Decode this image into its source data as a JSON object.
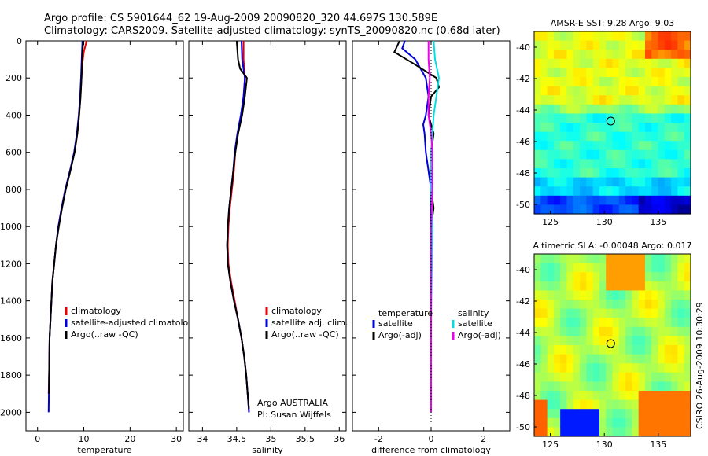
{
  "title_line1": "Argo profile: CS 5901644_62 19-Aug-2009 20090820_320 44.697S 130.589E",
  "title_line2": "Climatology: CARS2009. Satellite-adjusted climatology: synTS_20090820.nc (0.68d later)",
  "credit": "CSIRO 26-Aug-2009 10:30:29",
  "chart_data": [
    {
      "type": "line",
      "id": "temperature-profile",
      "xlabel": "temperature",
      "xlim": [
        -2.5,
        31.5
      ],
      "xticks": [
        0,
        10,
        20,
        30
      ],
      "ylim": [
        0,
        2100
      ],
      "yticks": [
        0,
        200,
        400,
        600,
        800,
        1000,
        1200,
        1400,
        1600,
        1800,
        2000
      ],
      "y_reversed": true,
      "legend": [
        "climatology",
        "satellite-adjusted climatology",
        "Argo(..raw -QC)"
      ],
      "series": [
        {
          "name": "climatology",
          "color": "#ee0000",
          "points": [
            [
              10.6,
              0
            ],
            [
              10.4,
              20
            ],
            [
              10.0,
              60
            ],
            [
              9.7,
              120
            ],
            [
              9.5,
              200
            ],
            [
              9.3,
              300
            ],
            [
              9.0,
              400
            ],
            [
              8.6,
              500
            ],
            [
              8.0,
              600
            ],
            [
              7.0,
              700
            ],
            [
              6.0,
              800
            ],
            [
              5.2,
              900
            ],
            [
              4.5,
              1000
            ],
            [
              4.0,
              1100
            ],
            [
              3.6,
              1200
            ],
            [
              3.2,
              1300
            ],
            [
              3.0,
              1400
            ],
            [
              2.8,
              1500
            ],
            [
              2.6,
              1600
            ],
            [
              2.5,
              1800
            ],
            [
              2.4,
              1900
            ]
          ]
        },
        {
          "name": "satellite-adjusted climatology",
          "color": "#0000dd",
          "points": [
            [
              9.7,
              0
            ],
            [
              9.6,
              60
            ],
            [
              9.4,
              200
            ],
            [
              9.2,
              300
            ],
            [
              8.9,
              400
            ],
            [
              8.5,
              500
            ],
            [
              7.9,
              600
            ],
            [
              7.0,
              700
            ],
            [
              6.0,
              800
            ],
            [
              5.2,
              900
            ],
            [
              4.5,
              1000
            ],
            [
              4.0,
              1100
            ],
            [
              3.6,
              1200
            ],
            [
              3.2,
              1300
            ],
            [
              3.0,
              1400
            ],
            [
              2.8,
              1500
            ],
            [
              2.6,
              1600
            ],
            [
              2.5,
              1800
            ],
            [
              2.4,
              2000
            ]
          ]
        },
        {
          "name": "Argo(..raw -QC)",
          "color": "#000000",
          "points": [
            [
              9.9,
              0
            ],
            [
              9.7,
              60
            ],
            [
              9.5,
              200
            ],
            [
              9.3,
              300
            ],
            [
              9.0,
              400
            ],
            [
              8.6,
              500
            ],
            [
              8.0,
              600
            ],
            [
              7.1,
              700
            ],
            [
              6.1,
              800
            ],
            [
              5.3,
              900
            ],
            [
              4.6,
              1000
            ],
            [
              4.0,
              1100
            ],
            [
              3.6,
              1200
            ],
            [
              3.2,
              1300
            ],
            [
              3.0,
              1400
            ],
            [
              2.8,
              1500
            ],
            [
              2.6,
              1600
            ],
            [
              2.5,
              1800
            ],
            [
              2.5,
              1900
            ]
          ]
        }
      ]
    },
    {
      "type": "line",
      "id": "salinity-profile",
      "xlabel": "salinity",
      "xlim": [
        33.8,
        36.1
      ],
      "xticks": [
        34,
        34.5,
        35,
        35.5,
        36
      ],
      "ylim": [
        0,
        2100
      ],
      "y_reversed": true,
      "legend": [
        "climatology",
        "satellite adj. clim.",
        "Argo(..raw -QC)"
      ],
      "annotation": [
        "Argo AUSTRALIA",
        "PI: Susan Wijffels"
      ],
      "series": [
        {
          "name": "climatology",
          "color": "#ee0000",
          "points": [
            [
              34.6,
              0
            ],
            [
              34.6,
              100
            ],
            [
              34.62,
              200
            ],
            [
              34.6,
              300
            ],
            [
              34.57,
              400
            ],
            [
              34.52,
              500
            ],
            [
              34.48,
              600
            ],
            [
              34.46,
              700
            ],
            [
              34.43,
              800
            ],
            [
              34.4,
              900
            ],
            [
              34.38,
              1000
            ],
            [
              34.37,
              1100
            ],
            [
              34.38,
              1200
            ],
            [
              34.42,
              1300
            ],
            [
              34.47,
              1400
            ],
            [
              34.52,
              1500
            ],
            [
              34.57,
              1600
            ],
            [
              34.61,
              1700
            ],
            [
              34.64,
              1800
            ],
            [
              34.66,
              1900
            ],
            [
              34.68,
              2000
            ]
          ]
        },
        {
          "name": "satellite adj. clim.",
          "color": "#0000dd",
          "points": [
            [
              34.57,
              0
            ],
            [
              34.58,
              100
            ],
            [
              34.62,
              200
            ],
            [
              34.6,
              300
            ],
            [
              34.56,
              400
            ],
            [
              34.51,
              500
            ],
            [
              34.47,
              600
            ],
            [
              34.45,
              700
            ],
            [
              34.42,
              800
            ],
            [
              34.39,
              900
            ],
            [
              34.37,
              1000
            ],
            [
              34.36,
              1100
            ],
            [
              34.37,
              1200
            ],
            [
              34.41,
              1300
            ],
            [
              34.46,
              1400
            ],
            [
              34.52,
              1500
            ],
            [
              34.57,
              1600
            ],
            [
              34.61,
              1700
            ],
            [
              34.64,
              1800
            ],
            [
              34.66,
              1900
            ],
            [
              34.68,
              2000
            ]
          ]
        },
        {
          "name": "Argo(..raw -QC)",
          "color": "#000000",
          "points": [
            [
              34.5,
              0
            ],
            [
              34.52,
              100
            ],
            [
              34.55,
              150
            ],
            [
              34.65,
              200
            ],
            [
              34.62,
              300
            ],
            [
              34.58,
              400
            ],
            [
              34.52,
              500
            ],
            [
              34.48,
              600
            ],
            [
              34.45,
              700
            ],
            [
              34.42,
              800
            ],
            [
              34.39,
              900
            ],
            [
              34.37,
              1000
            ],
            [
              34.36,
              1100
            ],
            [
              34.37,
              1200
            ],
            [
              34.41,
              1300
            ],
            [
              34.46,
              1400
            ],
            [
              34.52,
              1500
            ],
            [
              34.57,
              1600
            ],
            [
              34.61,
              1700
            ],
            [
              34.64,
              1800
            ],
            [
              34.66,
              1900
            ],
            [
              34.68,
              1980
            ]
          ]
        }
      ]
    },
    {
      "type": "line",
      "id": "difference-from-climatology",
      "xlabel": "difference from climatology",
      "xlim": [
        -3.0,
        3.0
      ],
      "xticks": [
        -2,
        0,
        2
      ],
      "ylim": [
        0,
        2100
      ],
      "y_reversed": true,
      "legend_temperature": {
        "title": "temperature",
        "items": [
          "satellite",
          "Argo(-adj)"
        ]
      },
      "legend_salinity": {
        "title": "salinity",
        "items": [
          "satellite",
          "Argo(-adj)"
        ]
      },
      "series": [
        {
          "name": "temperature satellite",
          "color": "#0000dd",
          "points": [
            [
              -1.0,
              0
            ],
            [
              -1.1,
              40
            ],
            [
              -0.6,
              100
            ],
            [
              -0.2,
              200
            ],
            [
              -0.1,
              300
            ],
            [
              -0.2,
              400
            ],
            [
              -0.3,
              450
            ],
            [
              -0.25,
              500
            ],
            [
              -0.2,
              600
            ],
            [
              -0.1,
              700
            ],
            [
              0.0,
              800
            ],
            [
              0.0,
              1000
            ],
            [
              0.0,
              1500
            ],
            [
              0.0,
              2000
            ]
          ]
        },
        {
          "name": "temperature Argo(-adj)",
          "color": "#000000",
          "points": [
            [
              -1.2,
              0
            ],
            [
              -1.4,
              60
            ],
            [
              -0.7,
              120
            ],
            [
              0.2,
              200
            ],
            [
              0.3,
              250
            ],
            [
              0.0,
              300
            ],
            [
              -0.1,
              400
            ],
            [
              0.1,
              500
            ],
            [
              0.0,
              600
            ],
            [
              0.0,
              800
            ],
            [
              0.1,
              900
            ],
            [
              0.0,
              1000
            ],
            [
              0.0,
              1500
            ],
            [
              0.0,
              1900
            ]
          ]
        },
        {
          "name": "salinity satellite",
          "color": "#00e0e0",
          "points": [
            [
              0.1,
              0
            ],
            [
              0.15,
              100
            ],
            [
              0.3,
              200
            ],
            [
              0.2,
              300
            ],
            [
              0.1,
              400
            ],
            [
              0.05,
              500
            ],
            [
              0.0,
              600
            ],
            [
              0.0,
              800
            ],
            [
              0.05,
              1000
            ],
            [
              0.0,
              1500
            ],
            [
              0.0,
              2000
            ]
          ]
        },
        {
          "name": "salinity Argo(-adj)",
          "color": "#ee00ee",
          "points": [
            [
              -0.1,
              0
            ],
            [
              -0.1,
              100
            ],
            [
              -0.05,
              200
            ],
            [
              -0.1,
              300
            ],
            [
              -0.1,
              400
            ],
            [
              0.0,
              500
            ],
            [
              0.05,
              600
            ],
            [
              0.05,
              700
            ],
            [
              0.05,
              800
            ],
            [
              0.0,
              1000
            ],
            [
              0.0,
              1500
            ],
            [
              0.0,
              2000
            ]
          ]
        }
      ]
    },
    {
      "type": "heatmap",
      "id": "amsr-e-sst-map",
      "title": "AMSR-E SST: 9.28 Argo: 9.03",
      "xlim": [
        123.5,
        138
      ],
      "ylim": [
        -50.6,
        -39
      ],
      "xticks": [
        125,
        130,
        135
      ],
      "yticks": [
        -40,
        -42,
        -44,
        -46,
        -48,
        -50
      ],
      "marker": [
        130.589,
        -44.697
      ]
    },
    {
      "type": "heatmap",
      "id": "altimetric-sla-map",
      "title": "Altimetric SLA: -0.00048 Argo: 0.017",
      "xlim": [
        123.5,
        138
      ],
      "ylim": [
        -50.6,
        -39
      ],
      "xticks": [
        125,
        130,
        135
      ],
      "yticks": [
        -40,
        -42,
        -44,
        -46,
        -48,
        -50
      ],
      "marker": [
        130.589,
        -44.697
      ]
    }
  ]
}
